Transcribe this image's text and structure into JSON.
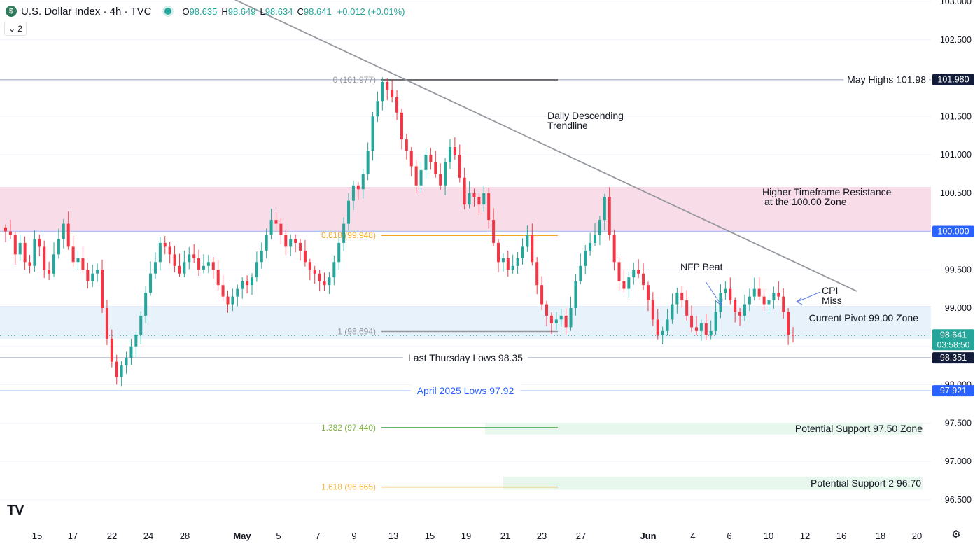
{
  "header": {
    "logo_letter": "$",
    "title": "U.S. Dollar Index · 4h · TVC",
    "open_label": "O",
    "open": "98.635",
    "high_label": "H",
    "high": "98.649",
    "low_label": "L",
    "low": "98.634",
    "close_label": "C",
    "close": "98.641",
    "change": "+0.012 (+0.01%)",
    "indicator_count": "2",
    "chevron": "⌄",
    "settings_icon": "gear-icon",
    "tv_logo": "TV"
  },
  "colors": {
    "up": "#26a69a",
    "down": "#f23645",
    "grid": "#f0f3fa",
    "text": "#131722",
    "axis_text": "#131722",
    "resistance_zone": "#f8dde8",
    "pivot_zone": "#e8f2fa",
    "support_zone": "#e8f7ee",
    "trendline": "#9598a1",
    "fib_level": "#9598a1",
    "fib_0618": "#f5a623",
    "fib_1382": "#4caf50",
    "fib_1618": "#f5b840",
    "blue_line": "#b2c3f5",
    "blue_label": "#2962ff",
    "dark_label": "#131722",
    "price_label_green": "#26a69a"
  },
  "chart_data": {
    "type": "candlestick",
    "symbol": "U.S. Dollar Index",
    "timeframe": "4h",
    "y_axis": {
      "ticks": [
        "103.000",
        "102.500",
        "101.500",
        "101.000",
        "100.500",
        "99.500",
        "99.000",
        "98.000",
        "97.500",
        "97.000",
        "96.500"
      ],
      "range": [
        96.4,
        103.05
      ]
    },
    "x_axis": {
      "ticks": [
        "15",
        "17",
        "22",
        "24",
        "28",
        "May",
        "5",
        "7",
        "9",
        "13",
        "15",
        "19",
        "21",
        "23",
        "27",
        "Jun",
        "4",
        "6",
        "10",
        "12",
        "16",
        "18",
        "20"
      ]
    },
    "price_labels": [
      {
        "text": "101.980",
        "style": "dark"
      },
      {
        "text": "100.000",
        "style": "blue"
      },
      {
        "text": "98.641",
        "sub": "03:58:50",
        "style": "green"
      },
      {
        "text": "98.351",
        "style": "dark"
      },
      {
        "text": "97.921",
        "style": "blue"
      }
    ],
    "horizontal_levels": [
      {
        "name": "May Highs",
        "value": 101.98,
        "label": "May Highs 101.98"
      },
      {
        "name": "Last Thursday Lows",
        "value": 98.351,
        "label": "Last Thursday Lows 98.35"
      },
      {
        "name": "April 2025 Lows",
        "value": 97.921,
        "label": "April 2025 Lows 97.92"
      }
    ],
    "zones": [
      {
        "name": "resistance",
        "from": 100.0,
        "to": 100.58,
        "label": "Higher Timeframe Resistance",
        "label2": "at the 100.00 Zone"
      },
      {
        "name": "pivot",
        "from": 98.6,
        "to": 99.02,
        "label": "Current Pivot 99.00 Zone"
      },
      {
        "name": "support1",
        "from": 97.35,
        "to": 97.5,
        "label": "Potential Support 97.50 Zone"
      },
      {
        "name": "support2",
        "from": 96.63,
        "to": 96.8,
        "label": "Potential Support 2 96.70"
      }
    ],
    "fib_levels": [
      {
        "ratio": "0",
        "value": 101.977,
        "label": "0 (101.977)"
      },
      {
        "ratio": "0.618",
        "value": 99.948,
        "label": "0.618 (99.948)"
      },
      {
        "ratio": "1",
        "value": 98.694,
        "label": "1 (98.694)"
      },
      {
        "ratio": "1.382",
        "value": 97.44,
        "label": "1.382 (97.440)"
      },
      {
        "ratio": "1.618",
        "value": 96.665,
        "label": "1.618 (96.665)"
      }
    ],
    "annotations": [
      {
        "text": "Daily Descending",
        "text2": "Trendline"
      },
      {
        "text": "NFP Beat"
      },
      {
        "text": "CPI",
        "text2": "Miss"
      }
    ],
    "trendline": {
      "from": {
        "date": "Apr 30",
        "value": 103.1
      },
      "to": {
        "date": "Jun 17",
        "value": 99.22
      }
    },
    "closes": [
      100.0,
      99.95,
      99.7,
      99.85,
      99.6,
      99.55,
      99.9,
      99.8,
      99.5,
      99.45,
      99.7,
      99.9,
      100.1,
      99.8,
      99.6,
      99.65,
      99.5,
      99.35,
      99.45,
      99.5,
      99.0,
      98.6,
      98.3,
      98.1,
      98.25,
      98.35,
      98.5,
      98.65,
      98.9,
      99.2,
      99.45,
      99.6,
      99.85,
      99.8,
      99.7,
      99.55,
      99.45,
      99.6,
      99.7,
      99.65,
      99.5,
      99.55,
      99.6,
      99.5,
      99.3,
      99.15,
      99.05,
      99.15,
      99.25,
      99.35,
      99.3,
      99.4,
      99.6,
      99.75,
      99.95,
      100.15,
      100.1,
      99.95,
      99.8,
      99.9,
      99.85,
      99.75,
      99.6,
      99.5,
      99.45,
      99.35,
      99.3,
      99.4,
      99.6,
      99.85,
      100.1,
      100.4,
      100.6,
      100.55,
      100.75,
      101.05,
      101.5,
      101.7,
      101.95,
      101.85,
      101.75,
      101.55,
      101.2,
      101.05,
      100.85,
      100.6,
      100.8,
      101.0,
      100.9,
      100.75,
      100.6,
      100.9,
      101.1,
      101.0,
      100.7,
      100.35,
      100.5,
      100.45,
      100.35,
      100.5,
      100.15,
      99.85,
      99.6,
      99.65,
      99.5,
      99.55,
      99.65,
      99.8,
      99.95,
      99.6,
      99.3,
      99.05,
      98.9,
      98.8,
      98.85,
      98.9,
      98.75,
      99.0,
      99.35,
      99.55,
      99.75,
      99.85,
      99.95,
      100.15,
      100.45,
      99.95,
      99.6,
      99.35,
      99.25,
      99.4,
      99.5,
      99.45,
      99.3,
      99.1,
      98.85,
      98.65,
      98.7,
      98.85,
      99.05,
      99.2,
      99.1,
      98.9,
      98.75,
      98.7,
      98.8,
      98.65,
      98.7,
      98.95,
      99.2,
      99.25,
      99.1,
      98.95,
      98.9,
      99.05,
      99.15,
      99.25,
      99.15,
      99.05,
      99.1,
      99.2,
      99.15,
      98.95,
      98.65,
      98.64
    ]
  },
  "icons": {
    "live": "live-dot-icon",
    "collapse": "chevron-down-icon",
    "settings": "gear-icon",
    "logo": "tradingview-logo"
  }
}
